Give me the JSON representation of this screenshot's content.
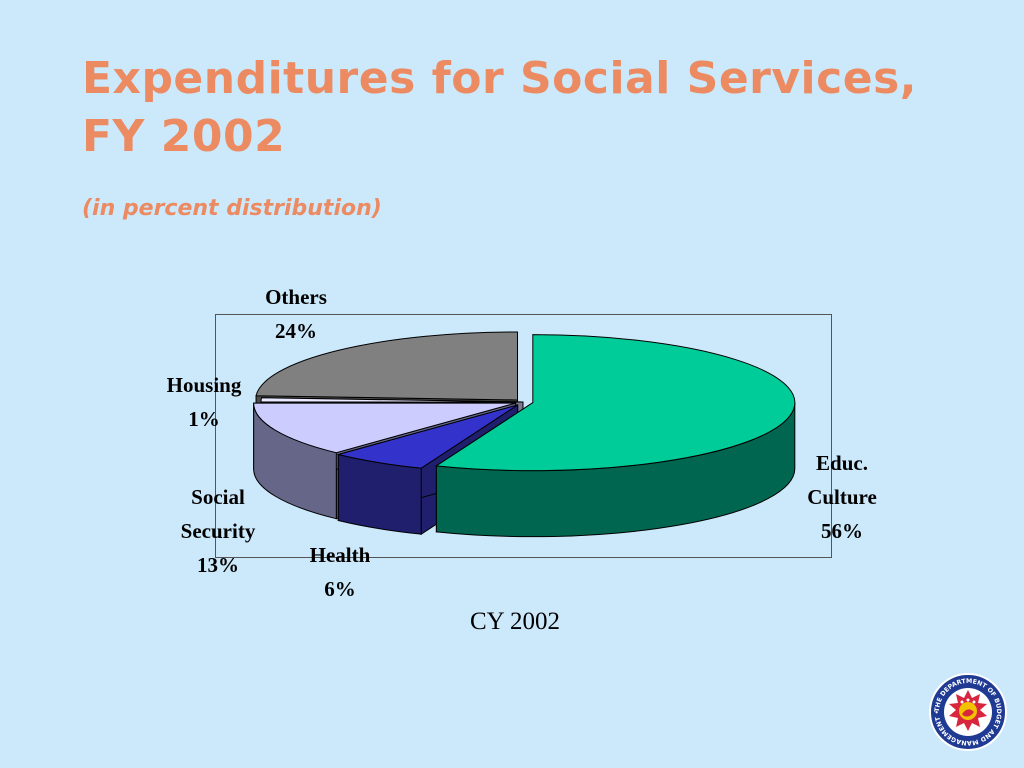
{
  "slide": {
    "title_line1": "Expenditures for Social Services,",
    "title_line2": "FY 2002",
    "subtitle": "(in percent distribution)",
    "caption": "CY 2002"
  },
  "colors": {
    "background": "#cce9fb",
    "title": "#ec8a62"
  },
  "logo": {
    "name": "department-of-budget-and-management-seal",
    "text": "THE DEPARTMENT OF BUDGET AND MANAGEMENT • 1936 •"
  },
  "chart_data": {
    "type": "pie",
    "style": "3d-exploded",
    "slices": [
      {
        "label_lines": [
          "Educ.",
          "Culture"
        ],
        "pct_label": "56%",
        "value": 56,
        "top_color": "#00cc99",
        "side_color": "#006650"
      },
      {
        "label_lines": [
          "Health"
        ],
        "pct_label": "6%",
        "value": 6,
        "top_color": "#3333cc",
        "side_color": "#1f1f6e"
      },
      {
        "label_lines": [
          "Social",
          "Security"
        ],
        "pct_label": "13%",
        "value": 13,
        "top_color": "#ccccff",
        "side_color": "#666688"
      },
      {
        "label_lines": [
          "Housing"
        ],
        "pct_label": "1%",
        "value": 1,
        "top_color": "#e8e8ff",
        "side_color": "#7a7a90"
      },
      {
        "label_lines": [
          "Others"
        ],
        "pct_label": "24%",
        "value": 24,
        "top_color": "#808080",
        "side_color": "#4d4d4d"
      }
    ]
  }
}
